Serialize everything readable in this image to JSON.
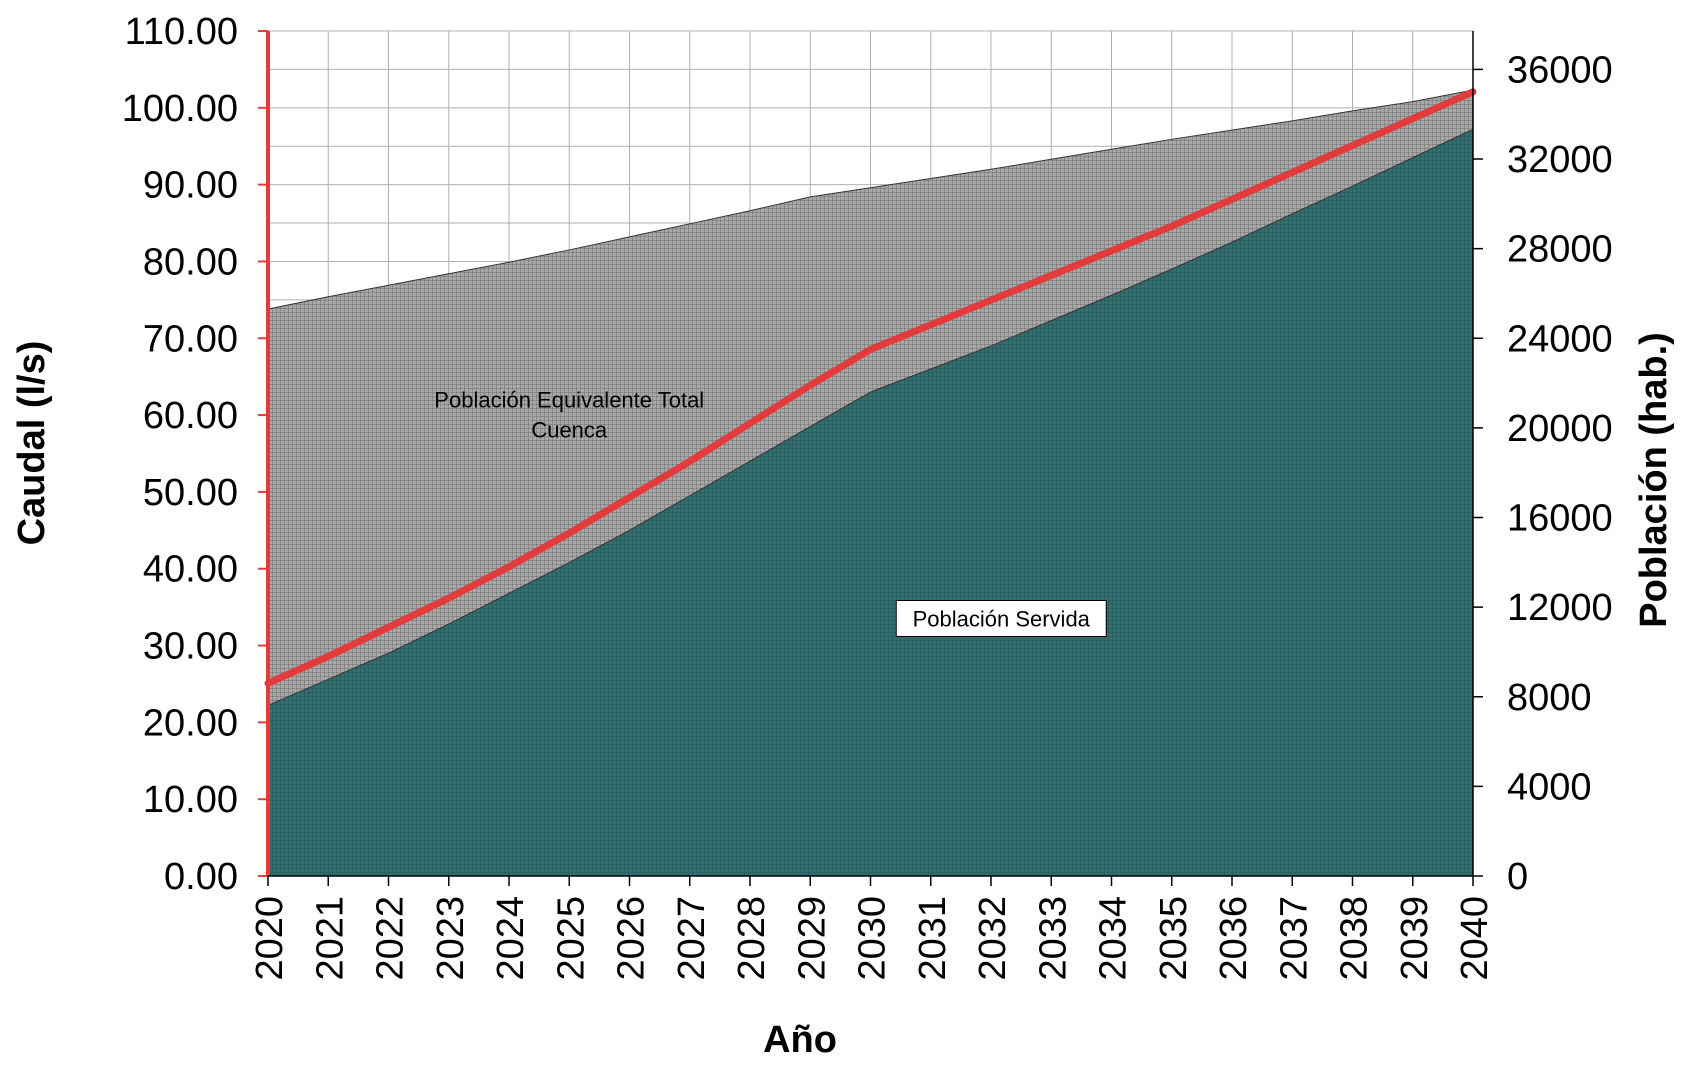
{
  "chart_data": {
    "type": "area",
    "xlabel": "Año",
    "ylabel": "Caudal (l/s)",
    "y2label": "Población (hab.)",
    "ylim": [
      0,
      110
    ],
    "y2lim": [
      0,
      37714
    ],
    "yticks": [
      "0.00",
      "10.00",
      "20.00",
      "30.00",
      "40.00",
      "50.00",
      "60.00",
      "70.00",
      "80.00",
      "90.00",
      "100.00",
      "110.00"
    ],
    "y2ticks": [
      "0",
      "4000",
      "8000",
      "12000",
      "16000",
      "20000",
      "24000",
      "28000",
      "32000",
      "36000"
    ],
    "categories": [
      "2020",
      "2021",
      "2022",
      "2023",
      "2024",
      "2025",
      "2026",
      "2027",
      "2028",
      "2029",
      "2030",
      "2031",
      "2032",
      "2033",
      "2034",
      "2035",
      "2036",
      "2037",
      "2038",
      "2039",
      "2040"
    ],
    "grid": true,
    "series": [
      {
        "name": "Población Equivalente Total Cuenca",
        "type": "area",
        "axis": "left",
        "color": "#9a9a9a",
        "values": [
          73.8,
          75.4,
          76.9,
          78.4,
          79.9,
          81.5,
          83.2,
          84.9,
          86.6,
          88.4,
          89.6,
          90.8,
          92.0,
          93.3,
          94.6,
          95.9,
          97.1,
          98.3,
          99.6,
          100.8,
          102.3
        ]
      },
      {
        "name": "Población Servida",
        "type": "area",
        "axis": "left",
        "color": "#2e6b6b",
        "values": [
          22.2,
          25.6,
          29.0,
          32.8,
          36.8,
          40.8,
          45.0,
          49.5,
          54.0,
          58.5,
          63.0,
          66.0,
          69.0,
          72.3,
          75.6,
          79.0,
          82.5,
          86.2,
          89.8,
          93.5,
          97.2
        ]
      },
      {
        "name": "Población",
        "type": "line",
        "axis": "right",
        "color": "#e33b3b",
        "values": [
          8600,
          9800,
          11100,
          12400,
          13800,
          15300,
          16900,
          18500,
          20200,
          21900,
          23500,
          24600,
          25700,
          26800,
          27900,
          29000,
          30200,
          31400,
          32600,
          33800,
          35000
        ]
      }
    ],
    "annotations": [
      {
        "text_lines": [
          "Población Equivalente Total",
          "Cuenca"
        ],
        "at_category": "2025",
        "at_value": 61
      },
      {
        "text": "Población Servida",
        "at_category": "2033",
        "at_value": 33,
        "boxed": true
      }
    ]
  }
}
